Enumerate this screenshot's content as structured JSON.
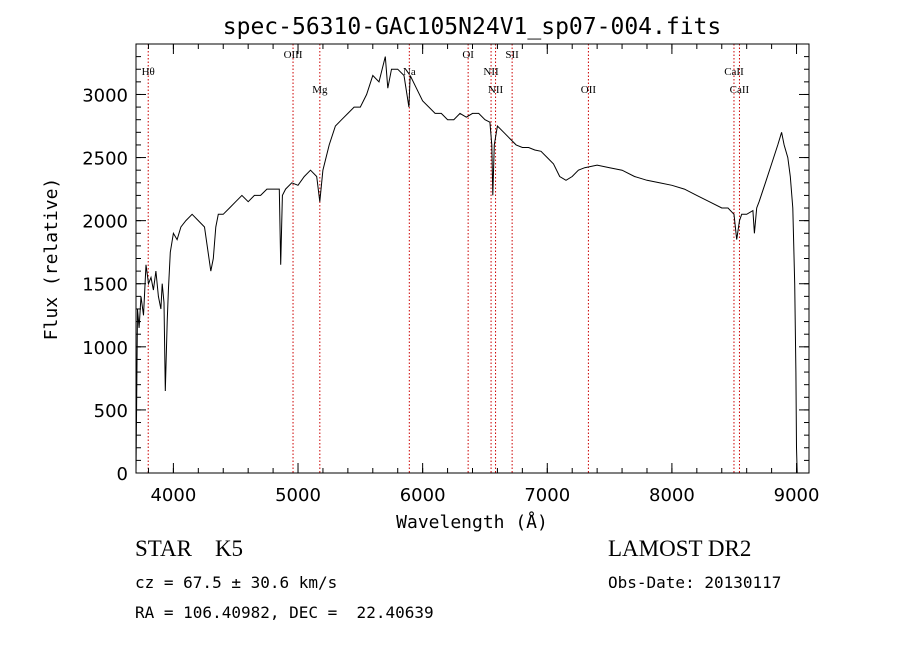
{
  "chart_data": {
    "type": "line",
    "title": "spec-56310-GAC105N24V1_sp07-004.fits",
    "xlabel": "Wavelength (Å)",
    "ylabel": "Flux (relative)",
    "xlim": [
      3700,
      9100
    ],
    "ylim": [
      0,
      3400
    ],
    "xticks": [
      "4000",
      "5000",
      "6000",
      "7000",
      "8000",
      "9000"
    ],
    "yticks": [
      "0",
      "500",
      "1000",
      "1500",
      "2000",
      "2500",
      "3000"
    ],
    "grid": false,
    "line_color": "#000000",
    "marker_color": "#cc0000",
    "series": [
      {
        "x": [
          3700,
          3712,
          3725,
          3740,
          3760,
          3780,
          3800,
          3820,
          3840,
          3860,
          3880,
          3900,
          3910,
          3925,
          3935,
          3950,
          3960,
          3975,
          4000,
          4030,
          4060,
          4100,
          4150,
          4200,
          4250,
          4300,
          4320,
          4340,
          4360,
          4400,
          4450,
          4500,
          4550,
          4600,
          4650,
          4700,
          4750,
          4800,
          4850,
          4861,
          4875,
          4900,
          4950,
          5000,
          5050,
          5100,
          5150,
          5175,
          5200,
          5250,
          5300,
          5350,
          5400,
          5450,
          5500,
          5550,
          5600,
          5650,
          5700,
          5720,
          5750,
          5800,
          5850,
          5890,
          5900,
          5950,
          6000,
          6050,
          6100,
          6150,
          6200,
          6250,
          6300,
          6350,
          6400,
          6450,
          6500,
          6540,
          6555,
          6563,
          6575,
          6600,
          6650,
          6700,
          6750,
          6800,
          6850,
          6900,
          6950,
          7000,
          7050,
          7100,
          7150,
          7200,
          7250,
          7300,
          7400,
          7500,
          7600,
          7700,
          7800,
          7900,
          8000,
          8100,
          8200,
          8300,
          8400,
          8450,
          8498,
          8520,
          8542,
          8560,
          8600,
          8650,
          8662,
          8680,
          8700,
          8750,
          8800,
          8850,
          8880,
          8900,
          8930,
          8950,
          8970,
          8985,
          8995,
          9000,
          9005,
          9010
        ],
        "y": [
          0,
          1300,
          1150,
          1400,
          1250,
          1650,
          1500,
          1550,
          1450,
          1600,
          1400,
          1300,
          1500,
          1350,
          650,
          1200,
          1450,
          1750,
          1900,
          1850,
          1950,
          2000,
          2050,
          2000,
          1950,
          1600,
          1700,
          1950,
          2050,
          2050,
          2100,
          2150,
          2200,
          2150,
          2200,
          2200,
          2250,
          2250,
          2250,
          1650,
          2200,
          2250,
          2300,
          2280,
          2350,
          2400,
          2350,
          2150,
          2400,
          2600,
          2750,
          2800,
          2850,
          2900,
          2900,
          3000,
          3150,
          3100,
          3300,
          3050,
          3200,
          3200,
          3150,
          2900,
          3150,
          3050,
          2950,
          2900,
          2850,
          2850,
          2800,
          2800,
          2850,
          2820,
          2850,
          2850,
          2800,
          2780,
          2600,
          2200,
          2600,
          2750,
          2700,
          2650,
          2600,
          2580,
          2580,
          2560,
          2550,
          2500,
          2450,
          2350,
          2320,
          2350,
          2400,
          2420,
          2440,
          2420,
          2400,
          2350,
          2320,
          2300,
          2280,
          2250,
          2200,
          2150,
          2100,
          2100,
          2050,
          1850,
          2000,
          2050,
          2050,
          2080,
          1900,
          2100,
          2150,
          2300,
          2450,
          2600,
          2700,
          2600,
          2500,
          2350,
          2100,
          1500,
          800,
          200,
          0,
          0
        ]
      }
    ],
    "lines": [
      {
        "label": "Hθ",
        "x": 3798
      },
      {
        "label": "OIII",
        "x": 4960
      },
      {
        "label": "Mg",
        "x": 5175
      },
      {
        "label": "Na",
        "x": 5893
      },
      {
        "label": "OI",
        "x": 6365
      },
      {
        "label": "NII",
        "x": 6549
      },
      {
        "label": "NII",
        "x": 6585
      },
      {
        "label": "OII",
        "x": 7330
      },
      {
        "label": "SII",
        "x": 6718
      },
      {
        "label": "CaII",
        "x": 8498
      },
      {
        "label": "CaII",
        "x": 8542
      }
    ]
  },
  "info": {
    "object_class": "STAR    K5",
    "cz": "cz = 67.5 ± 30.6 km/s",
    "coords": "RA = 106.40982, DEC =  22.40639",
    "survey": "LAMOST DR2",
    "obs_date": "Obs-Date: 20130117"
  }
}
